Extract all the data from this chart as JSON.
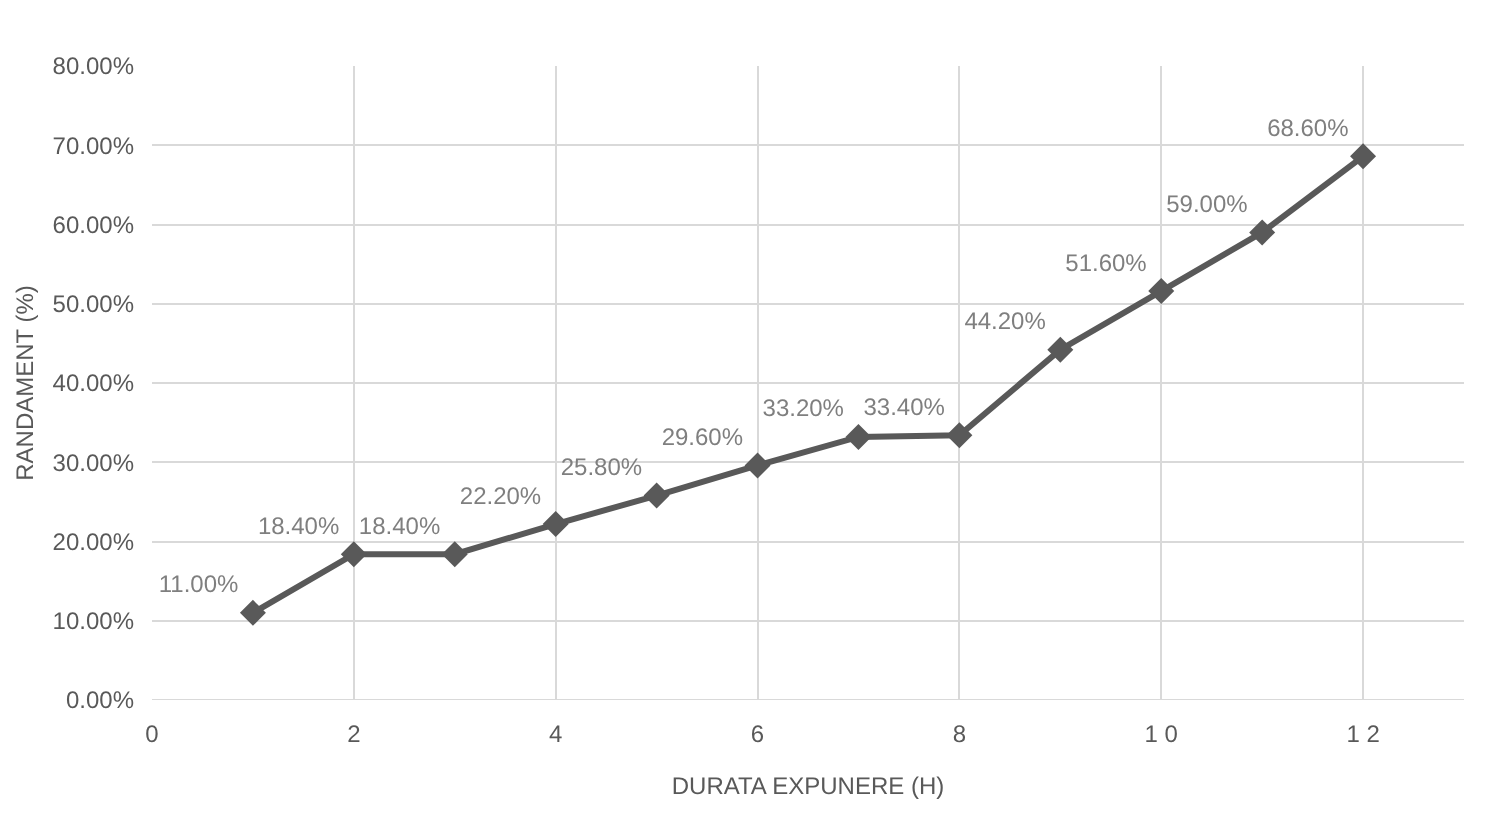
{
  "chart_data": {
    "type": "line",
    "xlabel": "DURATA EXPUNERE (H)",
    "ylabel": "RANDAMENT (%)",
    "x": [
      1,
      2,
      3,
      4,
      5,
      6,
      7,
      8,
      9,
      10,
      11,
      12
    ],
    "series": [
      {
        "color": "#595959",
        "values": [
          11.0,
          18.4,
          18.4,
          22.2,
          25.8,
          29.6,
          33.2,
          33.4,
          44.2,
          51.6,
          59.0,
          68.6
        ],
        "value_labels": [
          "11.00%",
          "18.40%",
          "18.40%",
          "22.20%",
          "25.80%",
          "29.60%",
          "33.20%",
          "33.40%",
          "44.20%",
          "51.60%",
          "59.00%",
          "68.60%"
        ]
      }
    ],
    "xlim": [
      0,
      13
    ],
    "xticks": [
      0,
      2,
      4,
      6,
      8,
      {
        "value": 10,
        "label": "1 0"
      },
      {
        "value": 12,
        "label": "1 2"
      }
    ],
    "ylim": [
      0,
      80
    ],
    "yticks": [
      {
        "value": 0,
        "label": "0.00%"
      },
      {
        "value": 10,
        "label": "10.00%"
      },
      {
        "value": 20,
        "label": "20.00%"
      },
      {
        "value": 30,
        "label": "30.00%"
      },
      {
        "value": 40,
        "label": "40.00%"
      },
      {
        "value": 50,
        "label": "50.00%"
      },
      {
        "value": 60,
        "label": "60.00%"
      },
      {
        "value": 70,
        "label": "70.00%"
      },
      {
        "value": 80,
        "label": "80.00%"
      }
    ],
    "grid": true,
    "marker": "diamond",
    "line_style": "solid"
  }
}
